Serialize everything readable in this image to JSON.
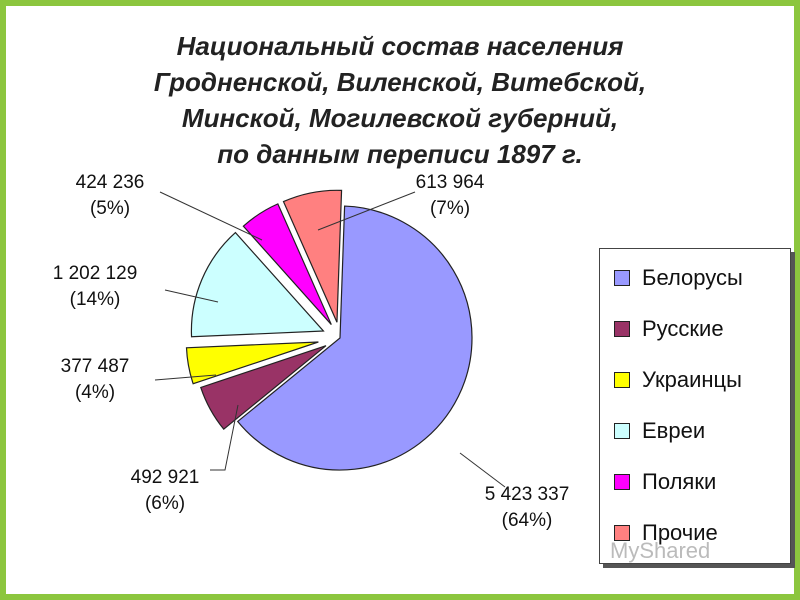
{
  "title_lines": [
    "Национальный состав населения",
    "Гродненской, Виленской, Витебской,",
    "Минской, Могилевской губерний,",
    "по данным переписи 1897 г."
  ],
  "watermark": "MyShared",
  "chart_data": {
    "type": "pie",
    "title": "Национальный состав населения Гродненской, Виленской, Витебской, Минской, Могилевской губерний, по данным переписи 1897 г.",
    "legend_position": "right",
    "slices": [
      {
        "name": "Белорусы",
        "value": 5423337,
        "value_label": "5 423 337",
        "percent_label": "(64%)",
        "percent": 64,
        "color": "#9999ff"
      },
      {
        "name": "Русские",
        "value": 492921,
        "value_label": "492 921",
        "percent_label": "(6%)",
        "percent": 6,
        "color": "#993366"
      },
      {
        "name": "Украинцы",
        "value": 377487,
        "value_label": "377 487",
        "percent_label": "(4%)",
        "percent": 4,
        "color": "#ffff00"
      },
      {
        "name": "Евреи",
        "value": 1202129,
        "value_label": "1 202 129",
        "percent_label": "(14%)",
        "percent": 14,
        "color": "#ccffff"
      },
      {
        "name": "Поляки",
        "value": 424236,
        "value_label": "424 236",
        "percent_label": "(5%)",
        "percent": 5,
        "color": "#ff00ff"
      },
      {
        "name": "Прочие",
        "value": 613964,
        "value_label": "613 964",
        "percent_label": "(7%)",
        "percent": 7,
        "color": "#ff8080"
      }
    ]
  }
}
